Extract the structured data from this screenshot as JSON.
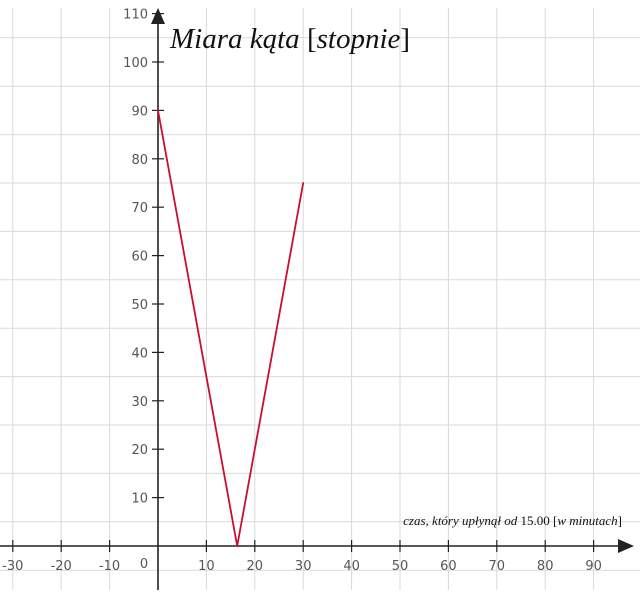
{
  "chart_data": {
    "type": "line",
    "ylabel_parts": [
      {
        "text": "Miara kąta ",
        "italic": true
      },
      {
        "text": "[",
        "italic": false
      },
      {
        "text": "stopnie",
        "italic": true
      },
      {
        "text": "]",
        "italic": false
      }
    ],
    "xlabel_parts": [
      {
        "text": "czas,  który upłynął od ",
        "italic": true
      },
      {
        "text": "15.00 [",
        "italic": false
      },
      {
        "text": "w minutach",
        "italic": true
      },
      {
        "text": "]",
        "italic": false
      }
    ],
    "xlim": [
      -30,
      100
    ],
    "ylim": [
      -10,
      112
    ],
    "x_ticks": [
      -30,
      -20,
      -10,
      10,
      20,
      30,
      40,
      50,
      60,
      70,
      80,
      90
    ],
    "y_ticks": [
      10,
      20,
      30,
      40,
      50,
      60,
      70,
      80,
      90,
      100,
      110
    ],
    "origin_label": "0",
    "grid": true,
    "series": [
      {
        "x": [
          0,
          16.36,
          30
        ],
        "y": [
          90,
          0,
          75
        ]
      }
    ],
    "colors": {
      "series": "#c8102e",
      "axis": "#222222",
      "grid": "#d9d9d9"
    }
  }
}
